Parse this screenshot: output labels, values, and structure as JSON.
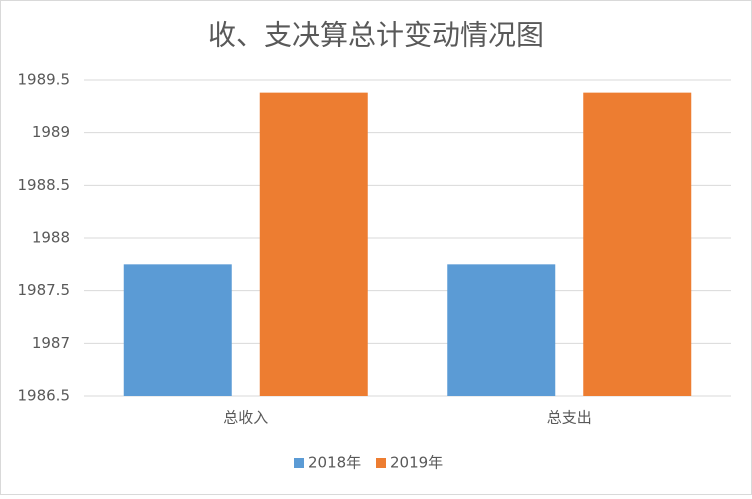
{
  "chart_data": {
    "type": "bar",
    "title": "收、支决算总计变动情况图",
    "categories": [
      "总收入",
      "总支出"
    ],
    "series": [
      {
        "name": "2018年",
        "color": "#5b9bd5",
        "values": [
          1987.75,
          1987.75
        ]
      },
      {
        "name": "2019年",
        "color": "#ed7d31",
        "values": [
          1989.38,
          1989.38
        ]
      }
    ],
    "ylim": [
      1986.5,
      1989.5
    ],
    "yticks": [
      1986.5,
      1987,
      1987.5,
      1988,
      1988.5,
      1989,
      1989.5
    ],
    "grid": true,
    "legend": "bottom"
  }
}
